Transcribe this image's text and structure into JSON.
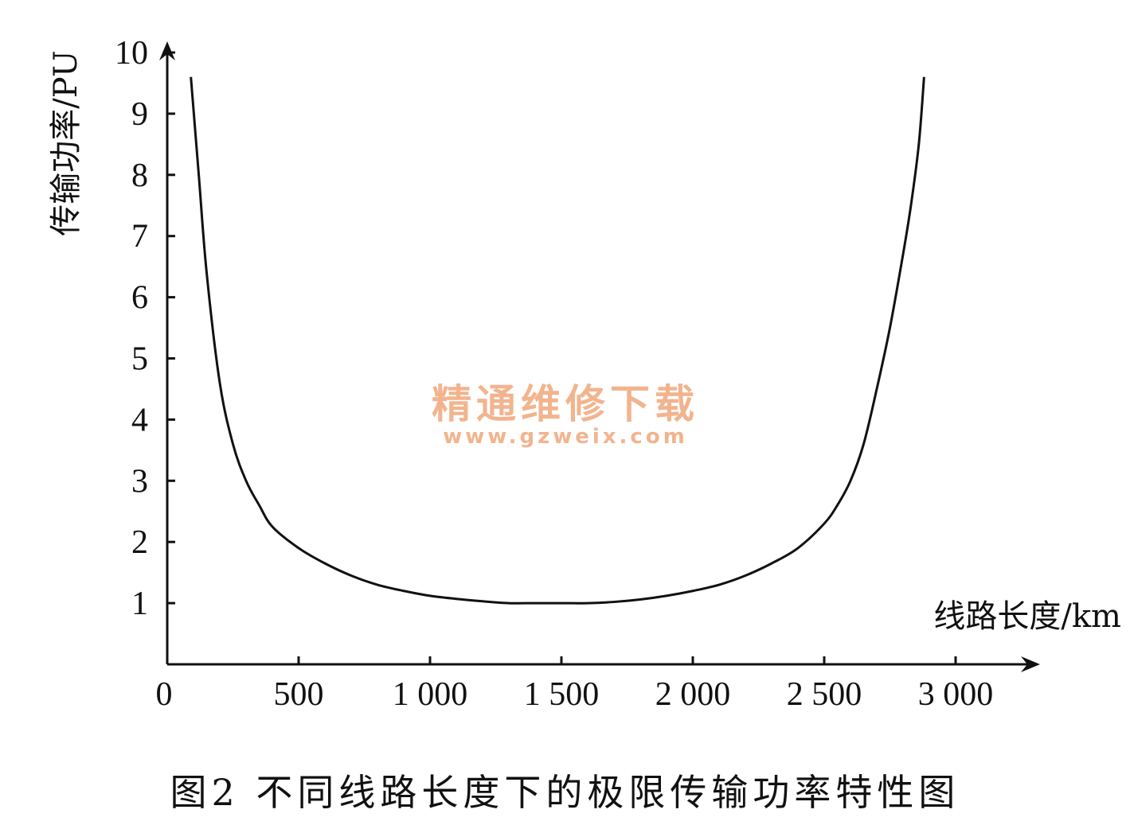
{
  "chart_data": {
    "type": "line",
    "title": "",
    "ylabel": "传输功率/PU",
    "xlabel": "线路长度/km",
    "xlim": [
      0,
      3000
    ],
    "ylim": [
      0,
      10
    ],
    "x_ticks": [
      0,
      500,
      1000,
      1500,
      2000,
      2500,
      3000
    ],
    "x_tick_labels": [
      "0",
      "500",
      "1 000",
      "1 500",
      "2 000",
      "2 500",
      "3 000"
    ],
    "y_ticks": [
      1,
      2,
      3,
      4,
      5,
      6,
      7,
      8,
      9,
      10
    ],
    "y_tick_labels": [
      "1",
      "2",
      "3",
      "4",
      "5",
      "6",
      "7",
      "8",
      "9",
      "10"
    ],
    "grid": false,
    "series": [
      {
        "x": [
          90,
          120,
          150,
          200,
          250,
          300,
          350,
          400,
          500,
          600,
          700,
          800,
          900,
          1000,
          1100,
          1200,
          1300,
          1400,
          1500,
          1600,
          1700,
          1800,
          1900,
          2000,
          2100,
          2200,
          2300,
          2400,
          2500,
          2550,
          2600,
          2650,
          2700,
          2750,
          2800,
          2830,
          2860,
          2880
        ],
        "y": [
          9.6,
          8.0,
          6.4,
          4.6,
          3.6,
          3.0,
          2.6,
          2.25,
          1.9,
          1.65,
          1.45,
          1.3,
          1.2,
          1.12,
          1.07,
          1.03,
          1.0,
          1.0,
          1.0,
          1.0,
          1.02,
          1.06,
          1.12,
          1.2,
          1.3,
          1.45,
          1.65,
          1.9,
          2.3,
          2.6,
          3.0,
          3.6,
          4.5,
          5.5,
          6.7,
          7.5,
          8.5,
          9.6
        ]
      }
    ]
  },
  "watermark": {
    "main": "精通维修下载",
    "url": "www.gzweix.com",
    "color": "#f2b48e"
  },
  "caption": "图2  不同线路长度下的极限传输功率特性图"
}
